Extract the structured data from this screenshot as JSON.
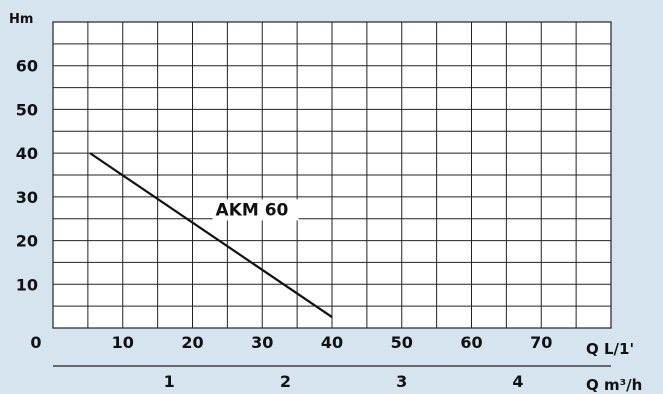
{
  "chart_data": {
    "type": "line",
    "title": "",
    "ylabel": "Hm",
    "xlabel": "Q L/1'",
    "xlabel_secondary": "Q m³/h",
    "xlim": [
      0,
      80
    ],
    "ylim": [
      0,
      70
    ],
    "grid": true,
    "x_ticks": [
      0,
      10,
      20,
      30,
      40,
      50,
      60,
      70
    ],
    "y_ticks": [
      10,
      20,
      30,
      40,
      50,
      60
    ],
    "secondary_x_ticks": [
      1,
      2,
      3,
      4
    ],
    "secondary_x_factor": 16.6667,
    "line_color": "#111111",
    "grid_color": "#222222",
    "series": [
      {
        "name": "AKM 60",
        "x": [
          5.3,
          40
        ],
        "y": [
          40,
          2.5
        ]
      }
    ]
  }
}
